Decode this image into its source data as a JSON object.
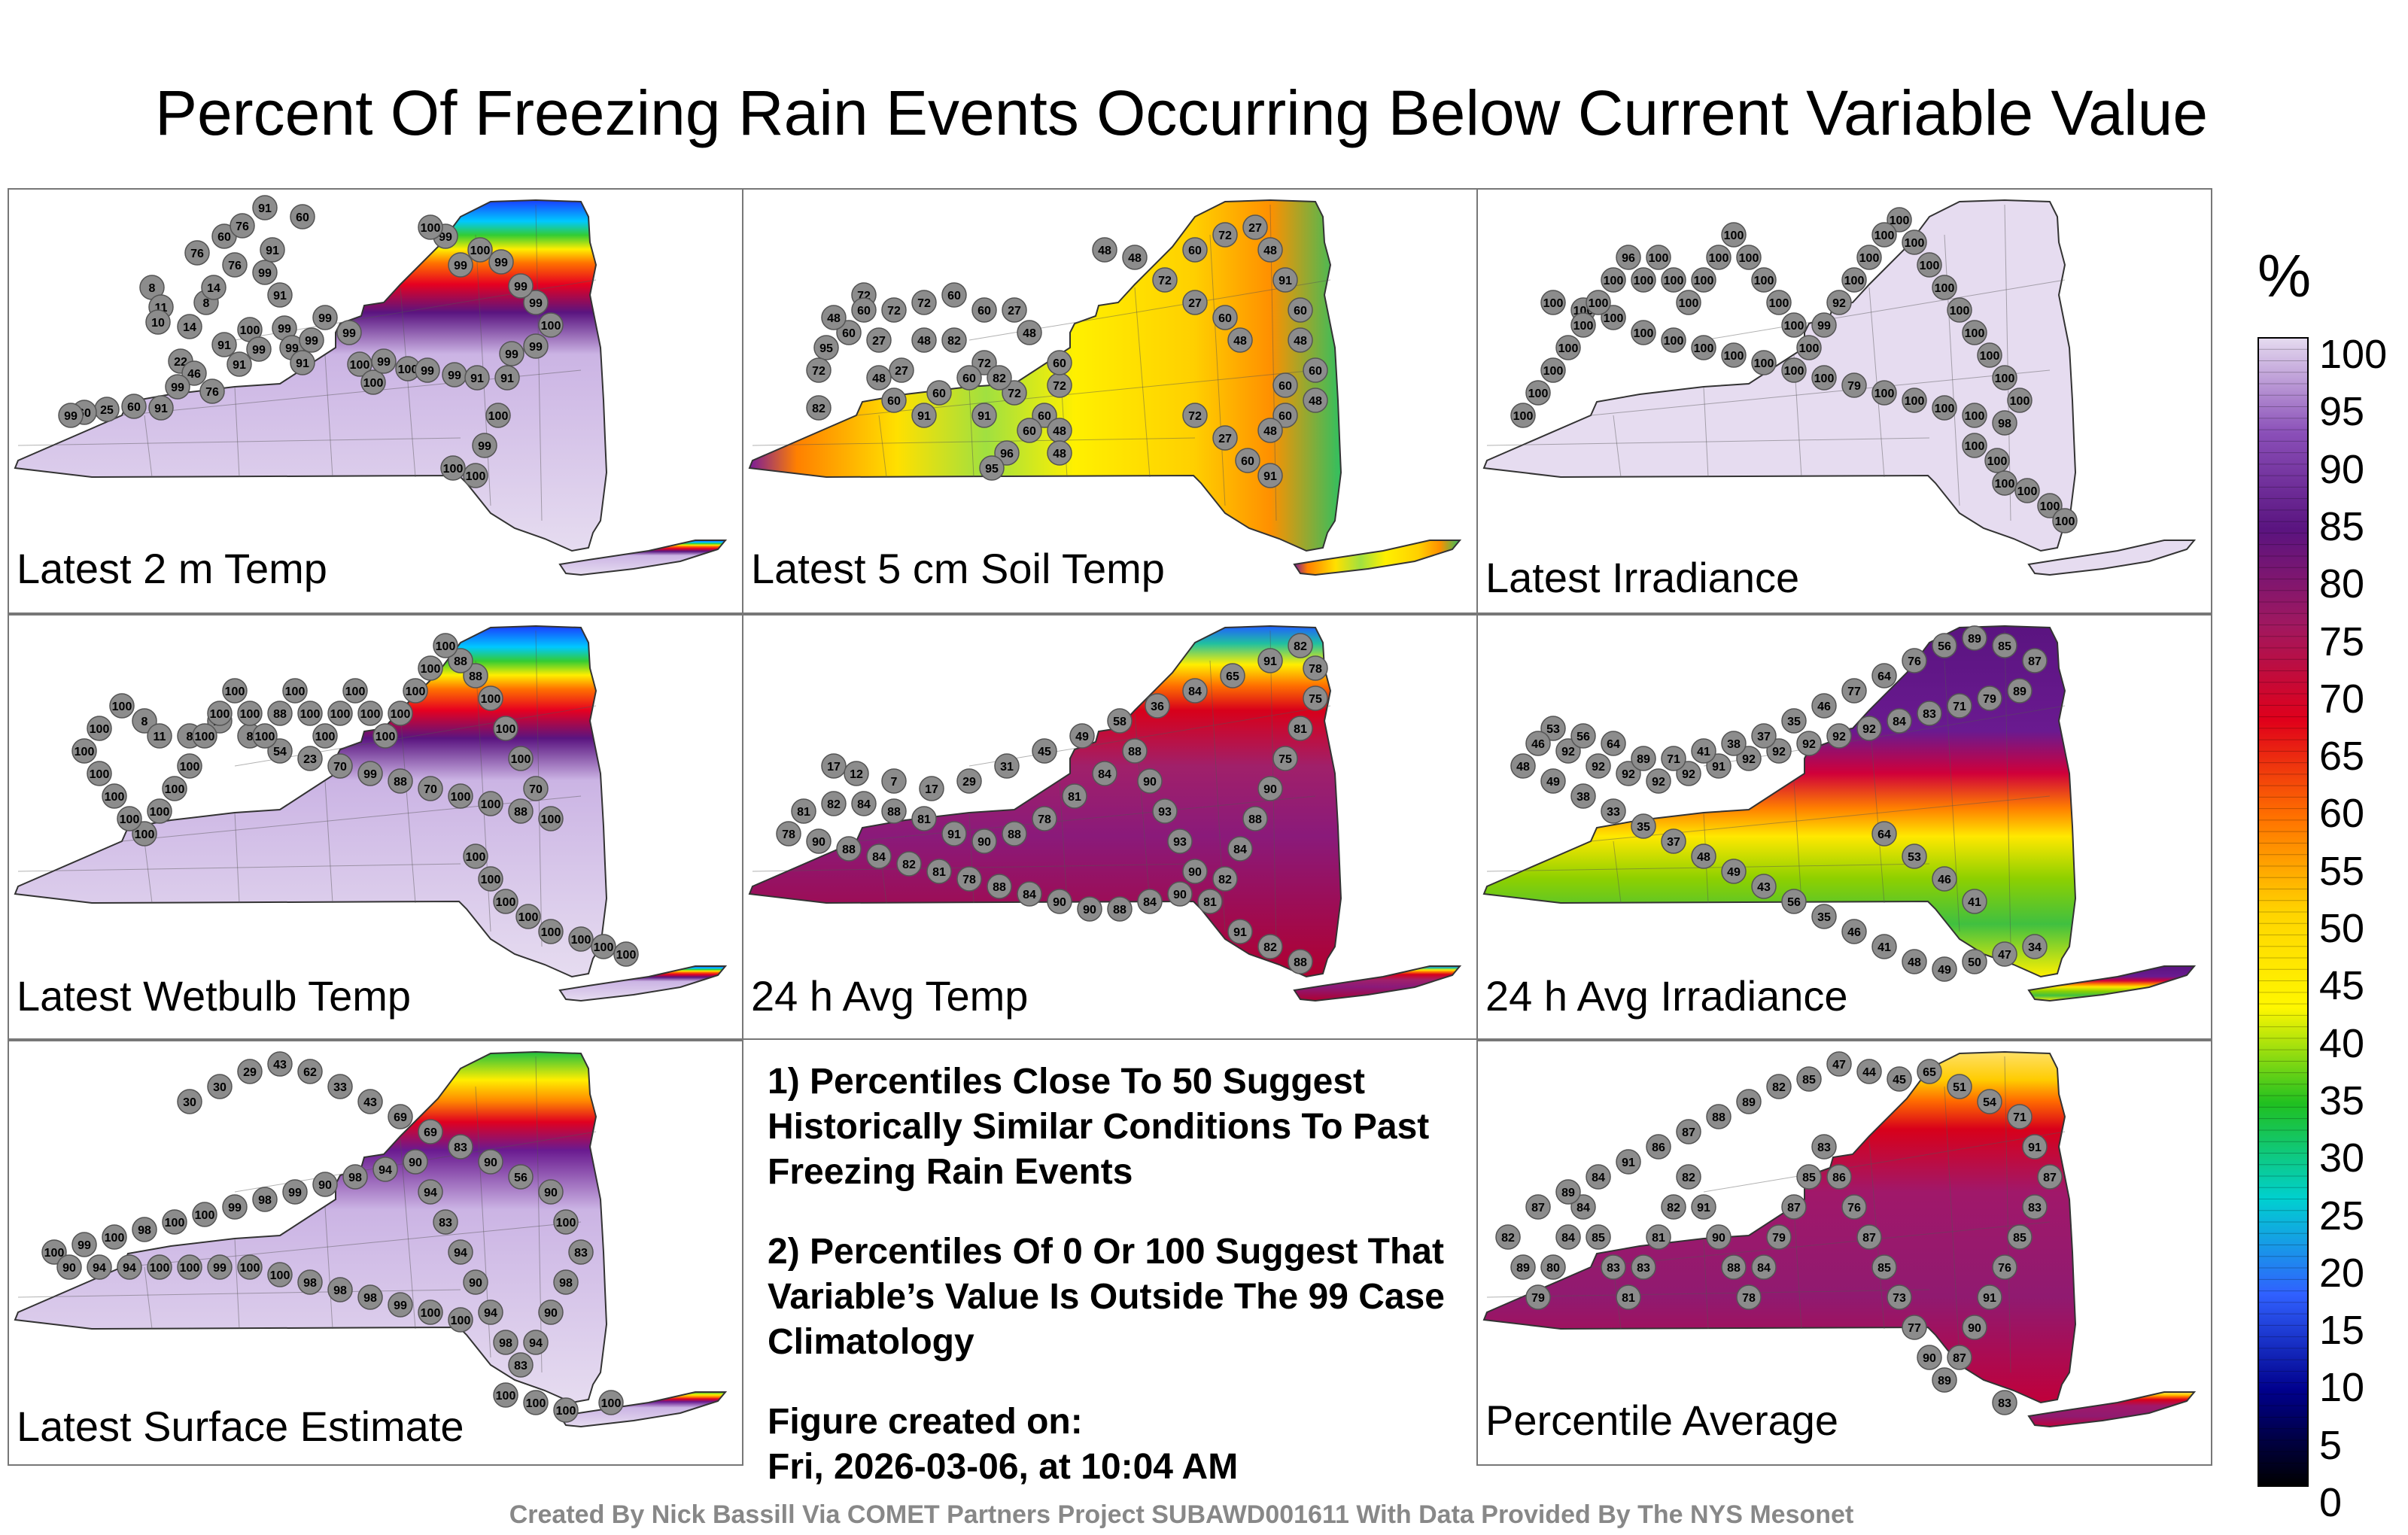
{
  "title": "Percent Of Freezing Rain Events Occurring Below Current Variable Value",
  "panels": [
    {
      "label": "Latest 2 m Temp",
      "scheme": "north-cold",
      "stations": [
        "8",
        "11",
        "8",
        "14",
        "10",
        "14",
        "22",
        "46",
        "76",
        "99",
        "91",
        "60",
        "25",
        "60",
        "99",
        "76",
        "60",
        "91",
        "60",
        "76",
        "91",
        "99",
        "91",
        "76",
        "100",
        "99",
        "91",
        "91",
        "99",
        "99",
        "91",
        "99",
        "99",
        "99",
        "100",
        "100",
        "99",
        "100",
        "99",
        "99",
        "91",
        "91",
        "99",
        "99",
        "100",
        "99",
        "99",
        "99",
        "100",
        "99",
        "99",
        "100",
        "100",
        "99",
        "100",
        "100"
      ]
    },
    {
      "label": "Latest 5 cm Soil Temp",
      "scheme": "soil",
      "stations": [
        "72",
        "60",
        "72",
        "27",
        "60",
        "48",
        "95",
        "72",
        "82",
        "60",
        "91",
        "72",
        "72",
        "60",
        "48",
        "27",
        "60",
        "60",
        "72",
        "48",
        "82",
        "72",
        "27",
        "48",
        "60",
        "91",
        "60",
        "82",
        "60",
        "48",
        "72",
        "27",
        "60",
        "91",
        "48",
        "60",
        "96",
        "95",
        "48",
        "60",
        "27",
        "72",
        "48",
        "48",
        "60",
        "72",
        "27",
        "48",
        "91",
        "60",
        "48",
        "60",
        "48",
        "60",
        "48",
        "60"
      ]
    },
    {
      "label": "Latest Irradiance",
      "scheme": "all-100",
      "stations": [
        "100",
        "100",
        "100",
        "100",
        "100",
        "100",
        "100",
        "100",
        "100",
        "100",
        "79",
        "100",
        "100",
        "100",
        "100",
        "98",
        "100",
        "100",
        "100",
        "100",
        "100",
        "100",
        "100",
        "100",
        "100",
        "100",
        "100",
        "100",
        "92",
        "99",
        "100",
        "100",
        "100",
        "100",
        "100",
        "100",
        "100",
        "100",
        "100",
        "100",
        "100",
        "100",
        "96",
        "100",
        "100",
        "100",
        "100",
        "100",
        "100",
        "100",
        "100",
        "100",
        "100",
        "100",
        "100",
        "100"
      ]
    },
    {
      "label": "Latest Wetbulb Temp",
      "scheme": "north-cold",
      "stations": [
        "8",
        "11",
        "8",
        "17",
        "8",
        "54",
        "23",
        "70",
        "99",
        "88",
        "70",
        "100",
        "100",
        "88",
        "100",
        "70",
        "100",
        "100",
        "100",
        "88",
        "88",
        "100",
        "100",
        "100",
        "100",
        "100",
        "100",
        "100",
        "100",
        "100",
        "100",
        "100",
        "88",
        "100",
        "100",
        "100",
        "100",
        "100",
        "100",
        "100",
        "100",
        "100",
        "100",
        "100",
        "100",
        "100",
        "100",
        "100",
        "100",
        "100",
        "100",
        "100",
        "100",
        "100",
        "100",
        "100"
      ]
    },
    {
      "label": "24 h Avg Temp",
      "scheme": "avg-temp",
      "stations": [
        "17",
        "12",
        "7",
        "17",
        "29",
        "31",
        "45",
        "49",
        "58",
        "36",
        "84",
        "65",
        "91",
        "82",
        "78",
        "75",
        "81",
        "75",
        "90",
        "88",
        "84",
        "82",
        "81",
        "90",
        "93",
        "93",
        "90",
        "88",
        "84",
        "81",
        "78",
        "88",
        "90",
        "91",
        "81",
        "88",
        "84",
        "82",
        "81",
        "78",
        "90",
        "88",
        "84",
        "82",
        "81",
        "78",
        "88",
        "84",
        "90",
        "90",
        "88",
        "84",
        "90",
        "91",
        "82",
        "88"
      ]
    },
    {
      "label": "24 h Avg Irradiance",
      "scheme": "avg-irr",
      "stations": [
        "92",
        "92",
        "92",
        "92",
        "92",
        "91",
        "92",
        "92",
        "92",
        "92",
        "92",
        "84",
        "83",
        "71",
        "79",
        "89",
        "87",
        "85",
        "89",
        "56",
        "76",
        "64",
        "77",
        "46",
        "35",
        "37",
        "38",
        "41",
        "71",
        "89",
        "64",
        "56",
        "53",
        "46",
        "48",
        "49",
        "38",
        "33",
        "35",
        "37",
        "48",
        "49",
        "43",
        "56",
        "35",
        "46",
        "41",
        "48",
        "49",
        "50",
        "47",
        "34",
        "41",
        "46",
        "53",
        "64"
      ]
    },
    {
      "label": "Latest Surface Estimate",
      "scheme": "north-warm",
      "stations": [
        "30",
        "30",
        "29",
        "43",
        "62",
        "33",
        "43",
        "69",
        "69",
        "83",
        "90",
        "56",
        "90",
        "100",
        "83",
        "98",
        "90",
        "94",
        "83",
        "98",
        "94",
        "90",
        "94",
        "83",
        "94",
        "90",
        "94",
        "98",
        "90",
        "99",
        "98",
        "99",
        "100",
        "100",
        "98",
        "100",
        "99",
        "100",
        "90",
        "94",
        "94",
        "100",
        "100",
        "99",
        "100",
        "100",
        "98",
        "98",
        "98",
        "99",
        "100",
        "100",
        "100",
        "100",
        "100",
        "100"
      ]
    },
    {
      "label": "Percentile Average",
      "scheme": "average",
      "stations": [
        "47",
        "44",
        "45",
        "65",
        "51",
        "54",
        "71",
        "91",
        "87",
        "83",
        "85",
        "76",
        "91",
        "90",
        "87",
        "89",
        "90",
        "77",
        "73",
        "85",
        "87",
        "76",
        "86",
        "83",
        "85",
        "87",
        "79",
        "84",
        "78",
        "88",
        "90",
        "91",
        "82",
        "82",
        "81",
        "83",
        "81",
        "83",
        "85",
        "84",
        "84",
        "80",
        "79",
        "89",
        "82",
        "87",
        "89",
        "84",
        "91",
        "86",
        "87",
        "88",
        "89",
        "82",
        "85",
        "83"
      ]
    }
  ],
  "notes": {
    "note1": "1) Percentiles Close To 50 Suggest Historically Similar Conditions To Past Freezing Rain Events",
    "note2": "2) Percentiles Of 0 Or 100 Suggest That Variable’s Value Is Outside The 99 Case Climatology",
    "created_label": "Figure created on:",
    "created_date": "Fri, 2026-03-06, at 10:04 AM"
  },
  "colorbar": {
    "unit": "%",
    "ticks": [
      "100",
      "95",
      "90",
      "85",
      "80",
      "75",
      "70",
      "65",
      "60",
      "55",
      "50",
      "45",
      "40",
      "35",
      "30",
      "25",
      "20",
      "15",
      "10",
      "5",
      "0"
    ],
    "stops": [
      "#e6dcf0",
      "#8a4fb8",
      "#5a1480",
      "#a01860",
      "#e0001a",
      "#ff7000",
      "#ffd400",
      "#fff700",
      "#20c020",
      "#00d0d0",
      "#3060ff",
      "#00008c",
      "#000000"
    ]
  },
  "footer": "Created By Nick Bassill Via COMET Partners Project SUBAWD001611 With Data Provided By The NYS Mesonet"
}
